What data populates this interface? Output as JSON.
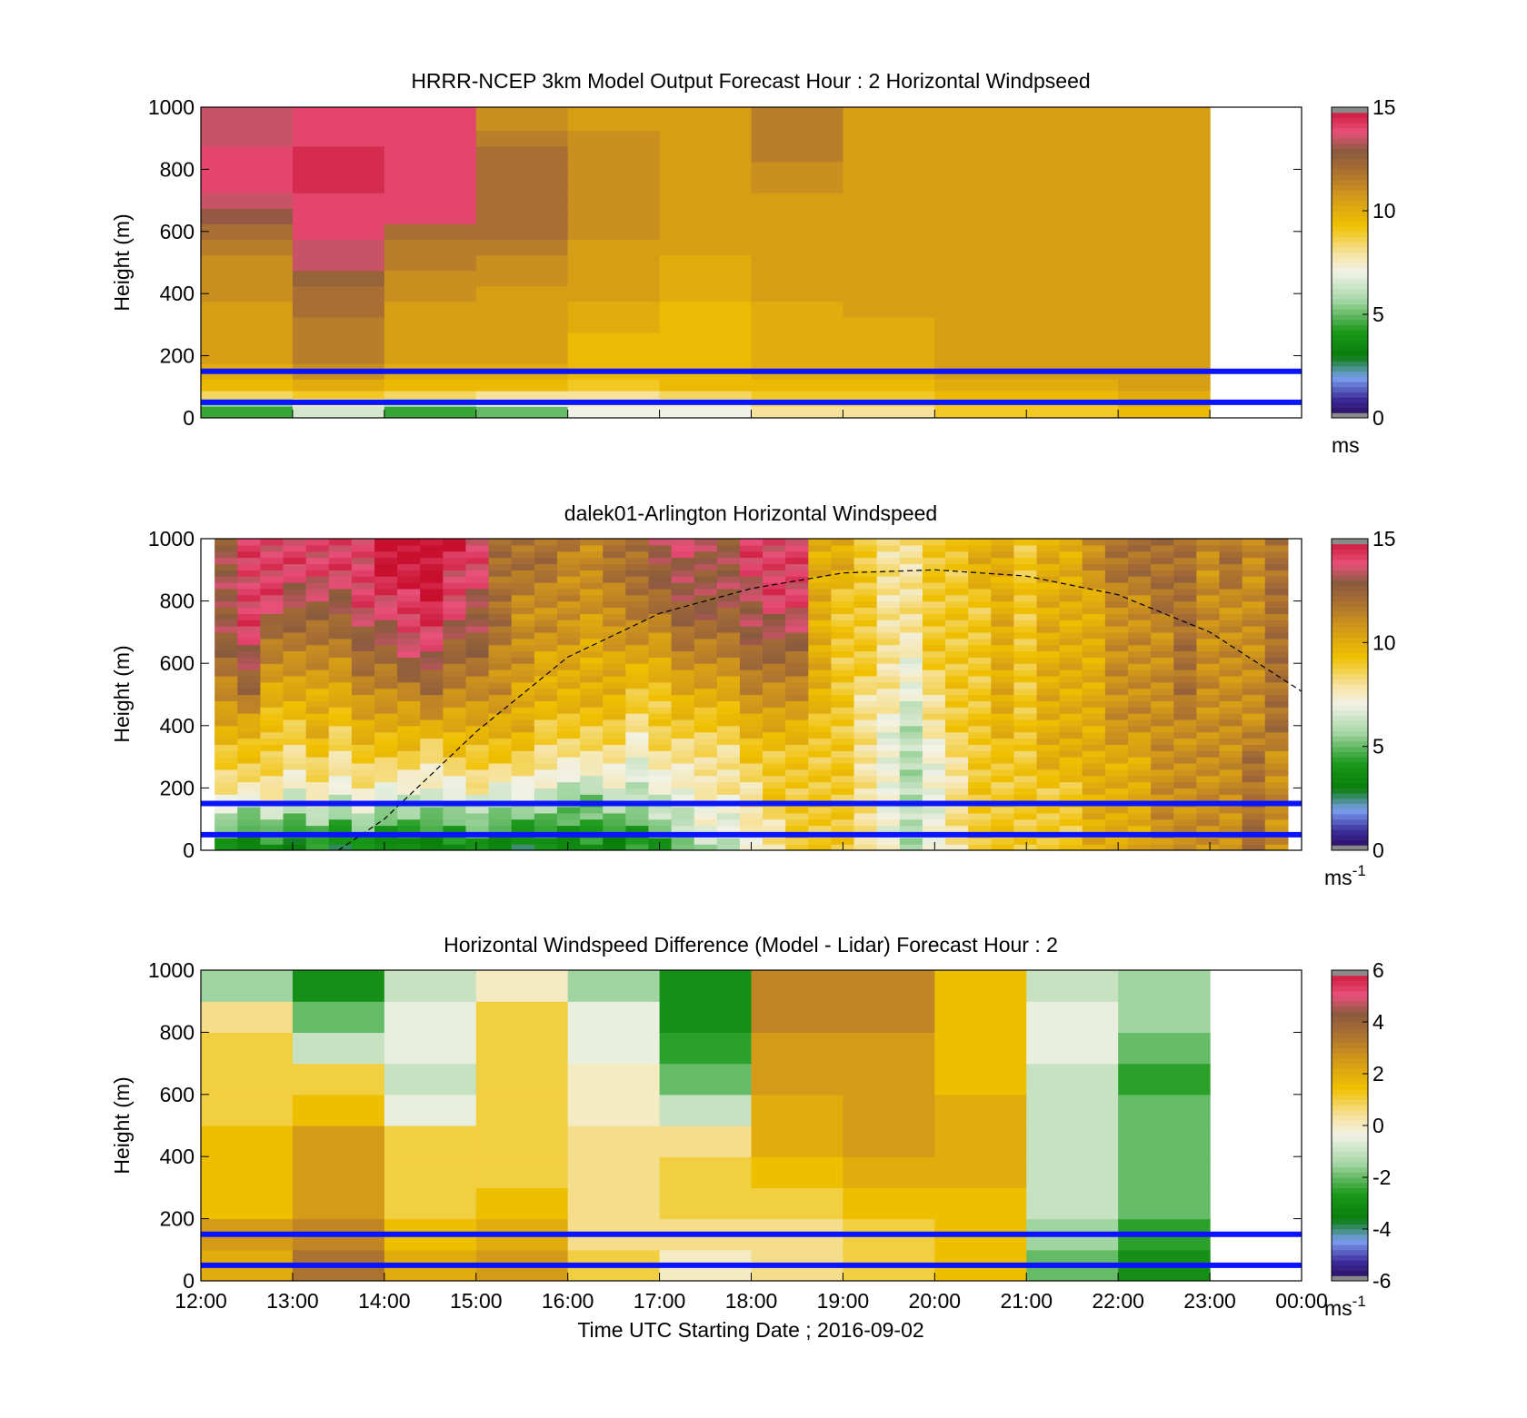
{
  "figure": {
    "xlabel": "Time UTC  Starting Date ; 2016-09-02",
    "x_tick_labels": [
      "12:00",
      "13:00",
      "14:00",
      "15:00",
      "16:00",
      "17:00",
      "18:00",
      "19:00",
      "20:00",
      "21:00",
      "22:00",
      "23:00",
      "00:00"
    ]
  },
  "chart_data": [
    {
      "type": "heatmap",
      "title": "HRRR-NCEP 3km Model Output   Forecast Hour : 2 Horizontal Windpseed",
      "ylabel": "Height (m)",
      "xlim_hours": [
        12,
        24
      ],
      "ylim": [
        0,
        1000
      ],
      "y_ticks": [
        0,
        200,
        400,
        600,
        800,
        1000
      ],
      "colorbar": {
        "ticks": [
          0,
          5,
          10,
          15
        ],
        "range": [
          0,
          15
        ],
        "unit": "ms",
        "unit_sup": ""
      },
      "reference_lines_m": [
        50,
        150
      ],
      "time_columns": [
        "12:00",
        "13:00",
        "14:00",
        "15:00",
        "16:00",
        "17:00",
        "18:00",
        "19:00",
        "20:00",
        "21:00",
        "22:00"
      ],
      "heights_m": [
        25,
        50,
        75,
        100,
        150,
        200,
        250,
        300,
        350,
        400,
        450,
        500,
        550,
        600,
        650,
        700,
        750,
        800,
        850,
        900,
        950,
        1000
      ],
      "values": [
        [
          4.5,
          6.5,
          4.5,
          5.0,
          7.0,
          7.0,
          8.0,
          8.0,
          9.0,
          9.0,
          9.5
        ],
        [
          5.5,
          7.5,
          6.0,
          7.0,
          7.5,
          7.5,
          8.5,
          8.5,
          9.0,
          9.0,
          10.0
        ],
        [
          8.5,
          9.0,
          8.5,
          8.0,
          8.0,
          8.5,
          9.0,
          9.0,
          9.5,
          9.5,
          10.0
        ],
        [
          9.5,
          10.0,
          9.5,
          9.5,
          9.0,
          9.5,
          9.5,
          9.5,
          10.0,
          10.0,
          10.5
        ],
        [
          10.0,
          11.0,
          10.0,
          10.0,
          9.5,
          9.5,
          10.0,
          10.0,
          10.5,
          10.5,
          10.5
        ],
        [
          10.5,
          11.5,
          10.5,
          10.5,
          9.5,
          9.5,
          10.0,
          10.0,
          10.5,
          10.5,
          10.5
        ],
        [
          10.5,
          11.5,
          10.5,
          10.5,
          9.5,
          9.5,
          10.0,
          10.0,
          10.5,
          10.5,
          10.5
        ],
        [
          10.5,
          11.5,
          10.5,
          10.5,
          10.0,
          9.5,
          10.0,
          10.0,
          10.5,
          10.5,
          10.5
        ],
        [
          10.5,
          12.0,
          10.5,
          10.5,
          10.0,
          9.5,
          10.0,
          10.5,
          10.5,
          10.5,
          10.5
        ],
        [
          11.0,
          12.0,
          11.0,
          10.5,
          10.5,
          10.0,
          10.5,
          10.5,
          10.5,
          10.5,
          10.5
        ],
        [
          11.0,
          12.5,
          11.0,
          11.0,
          10.5,
          10.0,
          10.5,
          10.5,
          10.5,
          10.5,
          10.5
        ],
        [
          11.0,
          13.5,
          11.5,
          11.0,
          10.5,
          10.0,
          10.5,
          10.5,
          10.5,
          10.5,
          10.5
        ],
        [
          11.5,
          13.5,
          11.5,
          11.5,
          10.5,
          10.5,
          10.5,
          10.5,
          10.5,
          10.5,
          10.5
        ],
        [
          12.0,
          14.0,
          12.0,
          12.0,
          11.0,
          10.5,
          10.5,
          10.5,
          10.5,
          10.5,
          10.5
        ],
        [
          13.0,
          14.0,
          14.0,
          12.0,
          11.0,
          10.5,
          10.5,
          10.5,
          10.5,
          10.5,
          10.5
        ],
        [
          13.5,
          14.0,
          14.0,
          12.0,
          11.0,
          10.5,
          10.5,
          10.5,
          10.5,
          10.5,
          10.5
        ],
        [
          14.0,
          14.5,
          14.0,
          12.0,
          11.0,
          10.5,
          11.0,
          10.5,
          10.5,
          10.5,
          10.5
        ],
        [
          14.0,
          14.5,
          14.0,
          12.0,
          11.0,
          10.5,
          11.0,
          10.5,
          10.5,
          10.5,
          10.5
        ],
        [
          14.0,
          14.5,
          14.0,
          12.0,
          11.0,
          10.5,
          11.5,
          10.5,
          10.5,
          10.5,
          10.5
        ],
        [
          13.5,
          14.0,
          14.0,
          11.5,
          11.0,
          10.5,
          11.5,
          10.5,
          10.5,
          10.5,
          10.5
        ],
        [
          13.5,
          14.0,
          14.0,
          11.0,
          10.5,
          10.5,
          11.5,
          10.5,
          10.5,
          10.5,
          10.5
        ],
        [
          13.5,
          14.0,
          14.0,
          11.0,
          10.5,
          10.5,
          11.5,
          10.5,
          10.5,
          10.5,
          10.5
        ]
      ]
    },
    {
      "type": "heatmap",
      "title": "dalek01-Arlington  Horizontal Windspeed",
      "ylabel": "Height (m)",
      "xlim_hours": [
        12,
        24
      ],
      "ylim": [
        0,
        1000
      ],
      "y_ticks": [
        0,
        200,
        400,
        600,
        800,
        1000
      ],
      "colorbar": {
        "ticks": [
          0,
          5,
          10,
          15
        ],
        "range": [
          0,
          15
        ],
        "unit": "ms",
        "unit_sup": "-1"
      },
      "reference_lines_m": [
        50,
        150
      ],
      "boundary_layer_curve": [
        {
          "t": "13:30",
          "h_m": 0
        },
        {
          "t": "14:00",
          "h_m": 100
        },
        {
          "t": "15:00",
          "h_m": 380
        },
        {
          "t": "16:00",
          "h_m": 620
        },
        {
          "t": "17:00",
          "h_m": 760
        },
        {
          "t": "18:00",
          "h_m": 840
        },
        {
          "t": "19:00",
          "h_m": 890
        },
        {
          "t": "20:00",
          "h_m": 900
        },
        {
          "t": "21:00",
          "h_m": 880
        },
        {
          "t": "22:00",
          "h_m": 820
        },
        {
          "t": "23:00",
          "h_m": 700
        },
        {
          "t": "00:00",
          "h_m": 510
        }
      ],
      "profile_count": 47,
      "heights_m": [
        20,
        60,
        100,
        150,
        200,
        300,
        400,
        500,
        600,
        700,
        800,
        900,
        1000
      ],
      "profile_values": [
        [
          4,
          5,
          6,
          7,
          8,
          9,
          10,
          11,
          12,
          13,
          13,
          13,
          13
        ],
        [
          3,
          4,
          5,
          6,
          8,
          9,
          10,
          12,
          13,
          14,
          14,
          14,
          14
        ],
        [
          4,
          5,
          6,
          7,
          8,
          9,
          9,
          10,
          11,
          12,
          14,
          14,
          14
        ],
        [
          3,
          4,
          5,
          6,
          7,
          8,
          9,
          10,
          11,
          12,
          13,
          14,
          14
        ],
        [
          4,
          5,
          6,
          7,
          8,
          9,
          10,
          10,
          11,
          12,
          13,
          14,
          14
        ],
        [
          3,
          4,
          5,
          6,
          7,
          8,
          9,
          10,
          11,
          12,
          13,
          14,
          14
        ],
        [
          4,
          5,
          6,
          7,
          8,
          9,
          10,
          11,
          12,
          13,
          14,
          14,
          14
        ],
        [
          3,
          4,
          5,
          6,
          7,
          9,
          10,
          11,
          12,
          13,
          14,
          15,
          15
        ],
        [
          4,
          4,
          5,
          6,
          7,
          9,
          10,
          11,
          13,
          14,
          14,
          15,
          15
        ],
        [
          3,
          4,
          5,
          6,
          7,
          8,
          10,
          12,
          13,
          14,
          15,
          15,
          15
        ],
        [
          4,
          4,
          5,
          6,
          7,
          9,
          10,
          11,
          12,
          13,
          14,
          14,
          15
        ],
        [
          4,
          5,
          6,
          6,
          8,
          9,
          10,
          11,
          12,
          13,
          13,
          14,
          14
        ],
        [
          3,
          4,
          5,
          6,
          7,
          9,
          10,
          11,
          11,
          12,
          12,
          12,
          12
        ],
        [
          3,
          4,
          5,
          6,
          7,
          9,
          10,
          10,
          11,
          11,
          11,
          12,
          12
        ],
        [
          4,
          4,
          5,
          6,
          7,
          8,
          9,
          10,
          10,
          11,
          11,
          12,
          12
        ],
        [
          3,
          4,
          5,
          5,
          6,
          8,
          9,
          10,
          10,
          11,
          11,
          11,
          12
        ],
        [
          4,
          4,
          5,
          5,
          6,
          8,
          9,
          10,
          10,
          10,
          11,
          11,
          11
        ],
        [
          3,
          4,
          5,
          6,
          7,
          8,
          9,
          10,
          10,
          11,
          11,
          12,
          12
        ],
        [
          4,
          4,
          5,
          6,
          6,
          7,
          8,
          9,
          10,
          11,
          12,
          12,
          12
        ],
        [
          4,
          5,
          6,
          6,
          7,
          8,
          9,
          9,
          10,
          11,
          12,
          13,
          13
        ],
        [
          5,
          6,
          6,
          7,
          7,
          8,
          9,
          10,
          11,
          12,
          13,
          13,
          14
        ],
        [
          6,
          7,
          7,
          7,
          8,
          8,
          9,
          10,
          11,
          12,
          13,
          13,
          13
        ],
        [
          6,
          7,
          7,
          7,
          8,
          8,
          9,
          10,
          11,
          12,
          13,
          13,
          13
        ],
        [
          7,
          7,
          8,
          8,
          8,
          9,
          10,
          11,
          12,
          13,
          13,
          14,
          14
        ],
        [
          8,
          8,
          8,
          9,
          9,
          9,
          10,
          11,
          12,
          13,
          14,
          14,
          14
        ],
        [
          9,
          9,
          9,
          9,
          9,
          9,
          10,
          11,
          12,
          13,
          14,
          14,
          14
        ],
        [
          9,
          9,
          9,
          9,
          9,
          9,
          9,
          10,
          10,
          10,
          10,
          10,
          10
        ],
        [
          9,
          9,
          9,
          9,
          9,
          9,
          9,
          9,
          9,
          9,
          9,
          10,
          10
        ],
        [
          8,
          8,
          8,
          8,
          8,
          8,
          8,
          8,
          9,
          9,
          9,
          9,
          9
        ],
        [
          7,
          7,
          7,
          7,
          7,
          7,
          7,
          8,
          8,
          8,
          8,
          8,
          8
        ],
        [
          6,
          6,
          6,
          6,
          6,
          6,
          6,
          7,
          7,
          8,
          8,
          8,
          8
        ],
        [
          7,
          7,
          7,
          7,
          7,
          7,
          8,
          8,
          9,
          9,
          9,
          9,
          9
        ],
        [
          8,
          8,
          8,
          8,
          8,
          8,
          9,
          9,
          9,
          9,
          9,
          9,
          9
        ],
        [
          9,
          9,
          9,
          9,
          9,
          9,
          9,
          9,
          9,
          9,
          9,
          10,
          10
        ],
        [
          9,
          9,
          9,
          9,
          9,
          9,
          10,
          10,
          10,
          10,
          10,
          10,
          10
        ],
        [
          9,
          9,
          9,
          9,
          9,
          9,
          9,
          9,
          9,
          9,
          9,
          9,
          9
        ],
        [
          9,
          9,
          9,
          9,
          9,
          10,
          10,
          10,
          10,
          10,
          10,
          10,
          10
        ],
        [
          9,
          9,
          9,
          9,
          9,
          10,
          10,
          10,
          10,
          10,
          10,
          10,
          10
        ],
        [
          10,
          10,
          10,
          10,
          10,
          10,
          10,
          10,
          10,
          10,
          10,
          11,
          11
        ],
        [
          10,
          10,
          10,
          10,
          10,
          10,
          11,
          11,
          11,
          11,
          11,
          12,
          12
        ],
        [
          10,
          10,
          10,
          10,
          10,
          10,
          11,
          11,
          11,
          11,
          11,
          12,
          12
        ],
        [
          11,
          11,
          11,
          11,
          11,
          11,
          11,
          11,
          11,
          11,
          12,
          12,
          12
        ],
        [
          11,
          11,
          11,
          11,
          11,
          11,
          11,
          12,
          12,
          12,
          12,
          12,
          12
        ],
        [
          11,
          11,
          11,
          11,
          11,
          11,
          11,
          11,
          11,
          11,
          11,
          11,
          11
        ],
        [
          11,
          11,
          11,
          11,
          11,
          11,
          11,
          11,
          11,
          11,
          11,
          12,
          12
        ],
        [
          12,
          12,
          12,
          12,
          12,
          12,
          11,
          11,
          11,
          11,
          11,
          11,
          11
        ],
        [
          11,
          11,
          11,
          11,
          11,
          11,
          12,
          12,
          12,
          12,
          12,
          12,
          12
        ]
      ]
    },
    {
      "type": "heatmap",
      "title": "Horizontal Windspeed Difference (Model - Lidar) Forecast Hour : 2",
      "ylabel": "Height (m)",
      "xlim_hours": [
        12,
        24
      ],
      "ylim": [
        0,
        1000
      ],
      "y_ticks": [
        0,
        200,
        400,
        600,
        800,
        1000
      ],
      "colorbar": {
        "ticks": [
          -6,
          -4,
          -2,
          0,
          2,
          4,
          6
        ],
        "range": [
          -6,
          6
        ],
        "unit": "ms",
        "unit_sup": "-1"
      },
      "reference_lines_m": [
        50,
        150
      ],
      "time_columns": [
        "12:00",
        "13:00",
        "14:00",
        "15:00",
        "16:00",
        "17:00",
        "18:00",
        "19:00",
        "20:00",
        "21:00",
        "22:00"
      ],
      "heights_m": [
        50,
        150,
        250,
        350,
        450,
        550,
        650,
        750,
        850,
        950
      ],
      "values": [
        [
          2.0,
          3.5,
          2.0,
          2.5,
          1.0,
          0.0,
          0.5,
          1.0,
          1.5,
          -2.0,
          -3.0
        ],
        [
          2.5,
          3.0,
          1.5,
          2.0,
          0.5,
          0.5,
          0.5,
          1.0,
          1.5,
          -1.5,
          -2.5
        ],
        [
          1.5,
          2.5,
          1.0,
          1.5,
          0.5,
          1.0,
          1.0,
          1.5,
          1.5,
          -1.0,
          -2.0
        ],
        [
          1.5,
          2.5,
          1.0,
          1.0,
          0.5,
          1.0,
          1.5,
          2.0,
          2.0,
          -1.0,
          -2.0
        ],
        [
          1.5,
          2.5,
          1.0,
          1.0,
          0.5,
          0.5,
          2.0,
          2.5,
          2.0,
          -1.0,
          -2.0
        ],
        [
          1.0,
          1.5,
          -0.5,
          1.0,
          0.0,
          -1.0,
          2.0,
          2.5,
          2.0,
          -1.0,
          -2.0
        ],
        [
          1.0,
          1.0,
          -1.0,
          1.0,
          0.0,
          -2.0,
          2.5,
          2.5,
          1.5,
          -1.0,
          -2.5
        ],
        [
          1.0,
          -1.0,
          -0.5,
          1.0,
          -0.5,
          -2.5,
          2.5,
          2.5,
          1.5,
          -0.5,
          -2.0
        ],
        [
          0.5,
          -2.0,
          -0.5,
          1.0,
          -0.5,
          -3.0,
          3.0,
          3.0,
          1.5,
          -0.5,
          -1.5
        ],
        [
          -1.5,
          -3.0,
          -1.0,
          0.0,
          -1.5,
          -3.0,
          3.0,
          3.0,
          1.5,
          -1.0,
          -1.5
        ]
      ]
    }
  ]
}
